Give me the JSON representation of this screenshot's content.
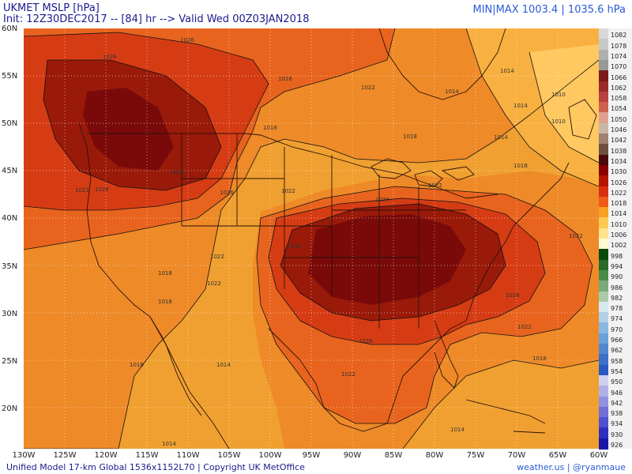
{
  "title": "UKMET MSLP [hPa]",
  "init_line": "Init: 12Z30DEC2017 -- [84] hr --> Valid Wed 00Z03JAN2018",
  "minmax": "MIN|MAX 1003.4 | 1035.6 hPa",
  "footer_left": "Unified Model 17-km Global 1536x1152L70 | Copyright UK MetOffice",
  "footer_right": "weather.us | @ryanmaue",
  "lat_labels": [
    "60N",
    "55N",
    "50N",
    "45N",
    "40N",
    "35N",
    "30N",
    "25N",
    "20N"
  ],
  "lon_labels": [
    "130W",
    "125W",
    "120W",
    "115W",
    "110W",
    "105W",
    "100W",
    "95W",
    "90W",
    "85W",
    "80W",
    "75W",
    "70W",
    "65W",
    "60W"
  ],
  "colorbar": [
    {
      "label": "1082",
      "color": "#d8d8d8"
    },
    {
      "label": "1078",
      "color": "#c8c8c8"
    },
    {
      "label": "1074",
      "color": "#b0b0b0"
    },
    {
      "label": "1070",
      "color": "#989898"
    },
    {
      "label": "1066",
      "color": "#7a1a1a"
    },
    {
      "label": "1062",
      "color": "#9a2a2a"
    },
    {
      "label": "1058",
      "color": "#b84040"
    },
    {
      "label": "1054",
      "color": "#d06050"
    },
    {
      "label": "1050",
      "color": "#e0a090"
    },
    {
      "label": "1046",
      "color": "#c8b8a8"
    },
    {
      "label": "1042",
      "color": "#a08070"
    },
    {
      "label": "1038",
      "color": "#705040"
    },
    {
      "label": "1034",
      "color": "#4a0a0a"
    },
    {
      "label": "1030",
      "color": "#8a0000"
    },
    {
      "label": "1026",
      "color": "#b41400"
    },
    {
      "label": "1022",
      "color": "#d82e10"
    },
    {
      "label": "1018",
      "color": "#f05a18"
    },
    {
      "label": "1014",
      "color": "#f8a020"
    },
    {
      "label": "1010",
      "color": "#ffc850"
    },
    {
      "label": "1006",
      "color": "#ffe490"
    },
    {
      "label": "1002",
      "color": "#fff8d0"
    },
    {
      "label": "998",
      "color": "#0a4a0a"
    },
    {
      "label": "994",
      "color": "#2a6a2a"
    },
    {
      "label": "990",
      "color": "#4a8a4a"
    },
    {
      "label": "986",
      "color": "#7aaa7a"
    },
    {
      "label": "982",
      "color": "#aaccaa"
    },
    {
      "label": "978",
      "color": "#d8e8f0"
    },
    {
      "label": "974",
      "color": "#b0d0e8"
    },
    {
      "label": "970",
      "color": "#88b8e0"
    },
    {
      "label": "966",
      "color": "#6aa0d8"
    },
    {
      "label": "962",
      "color": "#5088d0"
    },
    {
      "label": "958",
      "color": "#3a70c8"
    },
    {
      "label": "954",
      "color": "#2858c0"
    },
    {
      "label": "950",
      "color": "#d0d0f0"
    },
    {
      "label": "946",
      "color": "#b0b0e8"
    },
    {
      "label": "942",
      "color": "#9090e0"
    },
    {
      "label": "938",
      "color": "#7070d8"
    },
    {
      "label": "934",
      "color": "#5050d0"
    },
    {
      "label": "930",
      "color": "#3030c0"
    },
    {
      "label": "926",
      "color": "#1818a8"
    }
  ],
  "isobar_labels": {
    "l1": "1026",
    "l2": "1030",
    "l3": "1026",
    "l4": "1018",
    "l5": "1014",
    "l6": "1022",
    "l7": "1018",
    "l8": "1010",
    "l9": "1014",
    "l10": "1014",
    "l11": "1022",
    "l12": "1026",
    "l13": "1018",
    "l14": "1022",
    "l15": "1026",
    "l16": "1030",
    "l17": "1026",
    "l18": "1022",
    "l19": "1018",
    "l20": "1014",
    "l21": "1022",
    "l22": "1018",
    "l23": "1026",
    "l24": "1022",
    "l25": "1018",
    "l26": "1014",
    "l27": "1018",
    "l28": "1014",
    "l29": "1010",
    "l30": "1022",
    "l31": "1026",
    "l32": "1022",
    "l33": "1018",
    "l34": "1014",
    "l35": "1022"
  }
}
